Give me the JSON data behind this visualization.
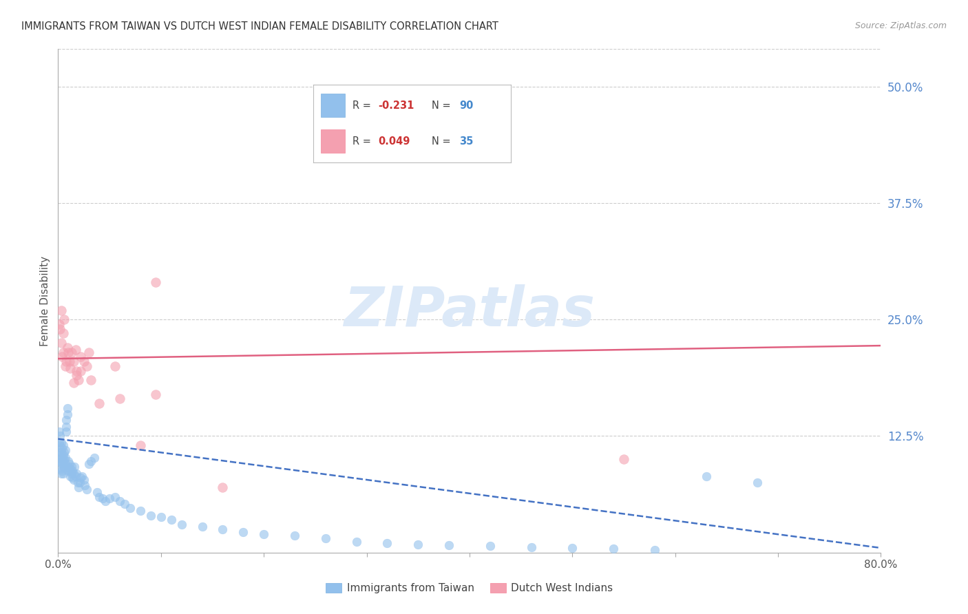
{
  "title": "IMMIGRANTS FROM TAIWAN VS DUTCH WEST INDIAN FEMALE DISABILITY CORRELATION CHART",
  "source": "Source: ZipAtlas.com",
  "ylabel": "Female Disability",
  "right_ytick_labels": [
    "50.0%",
    "37.5%",
    "25.0%",
    "12.5%"
  ],
  "right_ytick_values": [
    0.5,
    0.375,
    0.25,
    0.125
  ],
  "xlim": [
    0.0,
    0.8
  ],
  "ylim": [
    0.0,
    0.54
  ],
  "xtick_labels": [
    "0.0%",
    "",
    "",
    "",
    "",
    "",
    "",
    "",
    "80.0%"
  ],
  "xtick_values": [
    0.0,
    0.1,
    0.2,
    0.3,
    0.4,
    0.5,
    0.6,
    0.7,
    0.8
  ],
  "blue_color": "#92C0EC",
  "pink_color": "#F4A0B0",
  "blue_line_color": "#4472C4",
  "pink_line_color": "#E06080",
  "grid_color": "#cccccc",
  "watermark_color": "#dce9f8",
  "taiwan_x": [
    0.001,
    0.001,
    0.001,
    0.002,
    0.002,
    0.002,
    0.002,
    0.003,
    0.003,
    0.003,
    0.003,
    0.003,
    0.004,
    0.004,
    0.004,
    0.004,
    0.005,
    0.005,
    0.005,
    0.005,
    0.005,
    0.006,
    0.006,
    0.006,
    0.007,
    0.007,
    0.007,
    0.008,
    0.008,
    0.008,
    0.009,
    0.009,
    0.01,
    0.01,
    0.01,
    0.011,
    0.011,
    0.012,
    0.012,
    0.013,
    0.013,
    0.014,
    0.014,
    0.015,
    0.015,
    0.016,
    0.017,
    0.018,
    0.019,
    0.02,
    0.021,
    0.022,
    0.023,
    0.025,
    0.026,
    0.028,
    0.03,
    0.032,
    0.035,
    0.038,
    0.04,
    0.043,
    0.046,
    0.05,
    0.055,
    0.06,
    0.065,
    0.07,
    0.08,
    0.09,
    0.1,
    0.11,
    0.12,
    0.14,
    0.16,
    0.18,
    0.2,
    0.23,
    0.26,
    0.29,
    0.32,
    0.35,
    0.38,
    0.42,
    0.46,
    0.5,
    0.54,
    0.58,
    0.63,
    0.68
  ],
  "taiwan_y": [
    0.13,
    0.118,
    0.108,
    0.125,
    0.115,
    0.105,
    0.098,
    0.118,
    0.108,
    0.098,
    0.09,
    0.085,
    0.112,
    0.102,
    0.095,
    0.088,
    0.115,
    0.105,
    0.098,
    0.092,
    0.085,
    0.108,
    0.1,
    0.092,
    0.11,
    0.102,
    0.095,
    0.13,
    0.142,
    0.135,
    0.148,
    0.155,
    0.092,
    0.098,
    0.088,
    0.095,
    0.088,
    0.09,
    0.082,
    0.092,
    0.085,
    0.088,
    0.08,
    0.078,
    0.085,
    0.092,
    0.082,
    0.085,
    0.075,
    0.07,
    0.075,
    0.08,
    0.082,
    0.078,
    0.072,
    0.068,
    0.095,
    0.098,
    0.102,
    0.065,
    0.06,
    0.058,
    0.055,
    0.058,
    0.06,
    0.055,
    0.052,
    0.048,
    0.045,
    0.04,
    0.038,
    0.035,
    0.03,
    0.028,
    0.025,
    0.022,
    0.02,
    0.018,
    0.015,
    0.012,
    0.01,
    0.009,
    0.008,
    0.007,
    0.006,
    0.005,
    0.004,
    0.003,
    0.082,
    0.075
  ],
  "dutch_x": [
    0.001,
    0.002,
    0.003,
    0.003,
    0.004,
    0.005,
    0.005,
    0.006,
    0.007,
    0.008,
    0.009,
    0.01,
    0.011,
    0.012,
    0.013,
    0.015,
    0.017,
    0.018,
    0.02,
    0.022,
    0.025,
    0.028,
    0.032,
    0.03,
    0.022,
    0.018,
    0.015,
    0.04,
    0.055,
    0.06,
    0.08,
    0.095,
    0.16,
    0.55,
    0.095
  ],
  "dutch_y": [
    0.245,
    0.24,
    0.225,
    0.26,
    0.21,
    0.235,
    0.215,
    0.25,
    0.2,
    0.205,
    0.22,
    0.215,
    0.205,
    0.198,
    0.215,
    0.205,
    0.218,
    0.195,
    0.185,
    0.21,
    0.205,
    0.2,
    0.185,
    0.215,
    0.195,
    0.19,
    0.182,
    0.16,
    0.2,
    0.165,
    0.115,
    0.17,
    0.07,
    0.1,
    0.29
  ],
  "blue_trend_x0": 0.0,
  "blue_trend_y0": 0.122,
  "blue_trend_x1": 0.8,
  "blue_trend_y1": 0.005,
  "pink_trend_x0": 0.0,
  "pink_trend_y0": 0.208,
  "pink_trend_x1": 0.8,
  "pink_trend_y1": 0.222
}
